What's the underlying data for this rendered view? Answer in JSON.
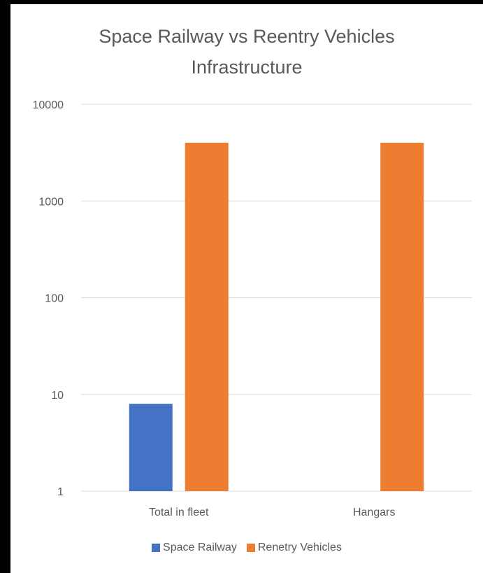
{
  "chart_data": {
    "type": "bar",
    "title_lines": [
      "Space Railway vs Reentry Vehicles",
      "Infrastructure"
    ],
    "categories": [
      "Total in fleet",
      "Hangars"
    ],
    "series": [
      {
        "name": "Space Railway",
        "values": [
          8,
          null
        ],
        "color": "#4472c4"
      },
      {
        "name": "Renetry Vehicles",
        "values": [
          4000,
          4000
        ],
        "color": "#ed7d31"
      }
    ],
    "yscale": "log",
    "ylim": [
      1,
      10000
    ],
    "yticks": [
      1,
      10,
      100,
      1000,
      10000
    ],
    "ytick_labels": [
      "1",
      "10",
      "100",
      "1000",
      "10000"
    ],
    "grid": true,
    "legend_position": "bottom"
  }
}
